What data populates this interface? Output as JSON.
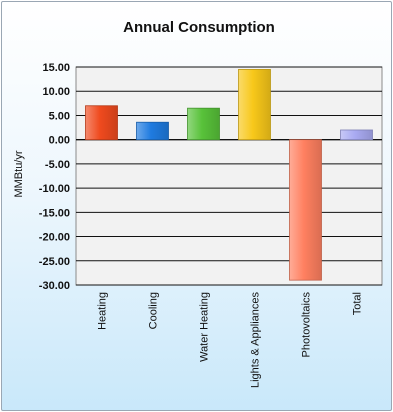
{
  "chart_data": {
    "type": "bar",
    "title": "Annual Consumption",
    "xlabel": "",
    "ylabel": "MMBtu/yr",
    "ylim": [
      -30,
      15
    ],
    "yticks": [
      "15.00",
      "10.00",
      "5.00",
      "0.00",
      "-5.00",
      "-10.00",
      "-15.00",
      "-20.00",
      "-25.00",
      "-30.00"
    ],
    "categories": [
      "Heating",
      "Cooling",
      "Water Heating",
      "Lights & Appliances",
      "Photovoltaics",
      "Total"
    ],
    "values": [
      7.0,
      3.6,
      6.5,
      14.5,
      -29.0,
      2.0
    ],
    "colors": [
      "#ef4a1e",
      "#1f7be0",
      "#58c23a",
      "#f8c81a",
      "#ff8060",
      "#a9aaf2"
    ],
    "grid": true,
    "legend": "none"
  }
}
